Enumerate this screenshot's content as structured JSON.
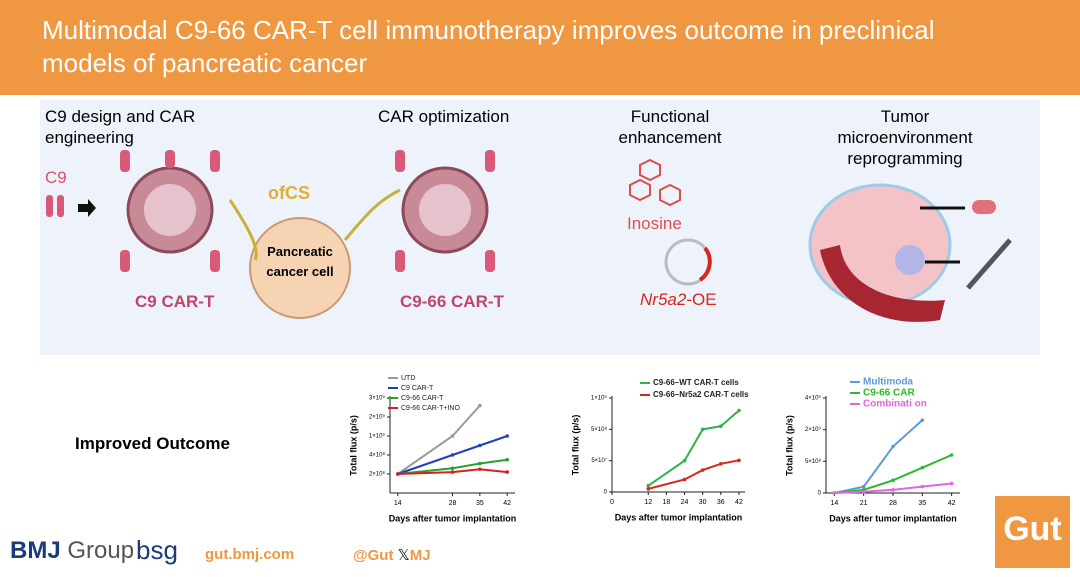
{
  "header": {
    "title": "Multimodal C9-66 CAR-T cell immunotherapy improves outcome in preclinical models of pancreatic cancer"
  },
  "sections": [
    "C9 design and CAR engineering",
    "CAR optimization",
    "Functional enhancement",
    "Tumor microenvironment reprogramming"
  ],
  "diagram": {
    "c9": "C9",
    "ofcs": "ofCS",
    "cancer_cell": "Pancreatic cancer cell",
    "c9_cart": "C9 CAR-T",
    "c966_cart": "C9-66 CAR-T",
    "inosine": "Inosine",
    "nr5a2": "Nr5a2",
    "oe": "-OE"
  },
  "outcome_label": "Improved Outcome",
  "chart_data": [
    {
      "type": "line",
      "y_label": "Total flux (p/s)",
      "x_label": "Days after tumor implantation",
      "y_scale": "broken",
      "x": [
        14,
        28,
        35,
        42
      ],
      "xlim": [
        12,
        44
      ],
      "xticks": [
        14,
        28,
        35,
        42
      ],
      "ylim": [
        0,
        3000000000
      ],
      "yticks": [
        {
          "value": 200000000,
          "label": "2×10⁸"
        },
        {
          "value": 400000000,
          "label": "4×10⁸"
        },
        {
          "value": 1000000000,
          "label": "1×10⁹"
        },
        {
          "value": 2000000000,
          "label": "2×10⁹"
        },
        {
          "value": 3000000000,
          "label": "3×10⁹"
        }
      ],
      "series": [
        {
          "name": "UTD",
          "color": "#9a9a9a",
          "values": [
            200000000,
            1000000000,
            2600000000,
            null
          ]
        },
        {
          "name": "C9 CAR-T",
          "color": "#1f3fbf",
          "values": [
            200000000,
            400000000,
            700000000,
            1000000000
          ]
        },
        {
          "name": "C9-66 CAR-T",
          "color": "#2aa02a",
          "values": [
            200000000,
            260000000,
            310000000,
            350000000
          ]
        },
        {
          "name": "C9-66 CAR-T+INO",
          "color": "#d62020",
          "values": [
            200000000,
            220000000,
            250000000,
            220000000
          ]
        }
      ]
    },
    {
      "type": "line",
      "y_label": "Total flux (p/s)",
      "x_label": "Days after tumor implantation",
      "y_scale": "broken",
      "x": [
        12,
        24,
        30,
        36,
        42
      ],
      "xlim": [
        0,
        44
      ],
      "xticks": [
        0,
        12,
        18,
        24,
        30,
        36,
        42
      ],
      "ylim": [
        0,
        1000000000
      ],
      "yticks": [
        0,
        {
          "value": 50000000,
          "label": "5×10⁷"
        },
        {
          "value": 500000000,
          "label": "5×10⁸"
        },
        {
          "value": 1000000000,
          "label": "1×10⁹"
        }
      ],
      "series": [
        {
          "name": "C9-66–WT CAR-T cells",
          "color": "#2cb34a",
          "values": [
            10000000,
            50000000,
            500000000,
            550000000,
            800000000
          ]
        },
        {
          "name": "C9-66–Nr5a2 CAR-T cells",
          "color": "#d9261c",
          "values": [
            5000000,
            20000000,
            35000000,
            45000000,
            55000000
          ]
        }
      ]
    },
    {
      "type": "line",
      "y_label": "Total flux (p/s)",
      "x_label": "Days after tumor implantation",
      "y_scale": "broken",
      "x": [
        14,
        21,
        28,
        35,
        42
      ],
      "xlim": [
        12,
        44
      ],
      "xticks": [
        14,
        21,
        28,
        35,
        42
      ],
      "ylim": [
        0,
        4000000000
      ],
      "yticks": [
        0,
        {
          "value": 500000000,
          "label": "5×10⁸"
        },
        {
          "value": 2000000000,
          "label": "2×10⁹"
        },
        {
          "value": 4000000000,
          "label": "4×10⁹"
        }
      ],
      "series": [
        {
          "name": "Multimoda",
          "color": "#5b9bd5",
          "values": [
            0,
            100000000,
            1200000000,
            2600000000,
            null
          ]
        },
        {
          "name": "C9-66 CAR",
          "color": "#2eb82e",
          "values": [
            0,
            50000000,
            200000000,
            400000000,
            800000000
          ]
        },
        {
          "name": "Combinati on",
          "color": "#e066e0",
          "values": [
            0,
            20000000,
            50000000,
            100000000,
            150000000
          ]
        }
      ]
    }
  ],
  "footer": {
    "bmj": "BMJ",
    "group": "Group",
    "bsg": "bsg",
    "url": "gut.bmj.com",
    "handle": "@Gut",
    "handle_end": "MJ",
    "journal": "Gut"
  }
}
